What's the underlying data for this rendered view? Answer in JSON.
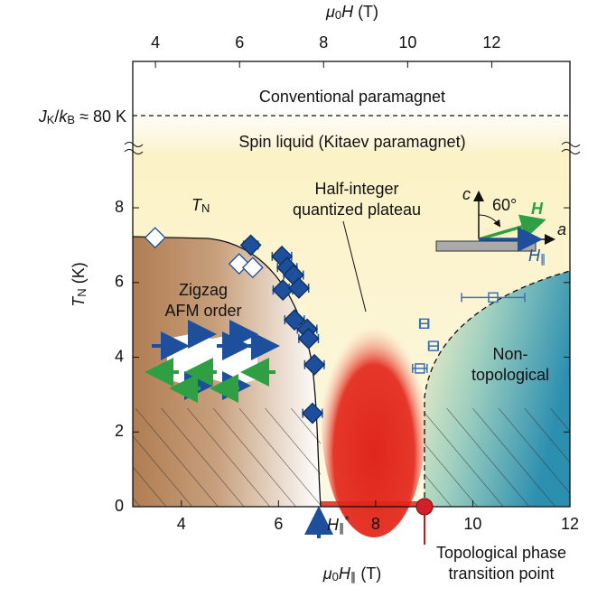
{
  "chart_data": {
    "type": "scatter",
    "x_label": [
      {
        "text": "μ",
        "italic": true
      },
      {
        "text": "0",
        "sub": true
      },
      {
        "text": "H",
        "italic": true
      },
      {
        "text": "∥",
        "sub": true
      },
      {
        "text": " (T)"
      }
    ],
    "x2_label": [
      {
        "text": "μ",
        "italic": true
      },
      {
        "text": "0",
        "sub": true
      },
      {
        "text": "H",
        "italic": true
      },
      {
        "text": " (T)"
      }
    ],
    "y_label": [
      {
        "text": "T",
        "italic": true
      },
      {
        "text": "N",
        "sub": true
      },
      {
        "text": " (K)"
      }
    ],
    "xlim": [
      3,
      12
    ],
    "xticks": [
      4,
      6,
      8,
      10,
      12
    ],
    "x2lim": [
      3.46,
      13.86
    ],
    "x2ticks": [
      4,
      6,
      8,
      10,
      12
    ],
    "ylim": [
      0,
      9.5
    ],
    "yticks": [
      0,
      2,
      4,
      6,
      8
    ],
    "series": [
      {
        "marker": "diamond",
        "color": "#1d4f9c",
        "filled": true,
        "x": [
          5.43,
          6.07,
          6.18,
          6.31,
          6.09,
          6.42,
          6.33,
          6.59,
          6.62,
          6.74,
          6.7
        ],
        "values": [
          7.0,
          6.7,
          6.4,
          6.2,
          5.8,
          5.85,
          5.0,
          4.75,
          4.5,
          3.8,
          2.5
        ],
        "xerr": [
          0.15,
          0.2,
          0.2,
          0.2,
          0.2,
          0.2,
          0.2,
          0.2,
          0.2,
          0.2,
          0.2
        ]
      },
      {
        "marker": "diamond",
        "color": "#1d4f9c",
        "filled": false,
        "x": [
          3.46,
          5.19,
          5.47
        ],
        "values": [
          7.2,
          6.5,
          6.4
        ]
      },
      {
        "marker": "square",
        "color": "#3a6fb8",
        "filled": false,
        "x": [
          9.0,
          9.19,
          8.91,
          10.42
        ],
        "values": [
          4.9,
          4.3,
          3.7,
          5.6
        ],
        "xerr": [
          0.08,
          0.1,
          0.15,
          0.65
        ]
      }
    ],
    "annotations": {
      "conventional": "Conventional paramagnet",
      "spin_liquid": "Spin liquid (Kitaev paramagnet)",
      "jk": [
        {
          "text": "J",
          "italic": true
        },
        {
          "text": "K",
          "sub": true
        },
        {
          "text": "/"
        },
        {
          "text": "k",
          "italic": true
        },
        {
          "text": "B",
          "sub": true
        },
        {
          "text": " ≈ 80 K"
        }
      ],
      "tn": [
        {
          "text": "T",
          "italic": true
        },
        {
          "text": "N",
          "sub": true
        }
      ],
      "plateau": [
        "Half-integer",
        "quantized plateau"
      ],
      "zigzag": [
        "Zigzag",
        "AFM order"
      ],
      "nontopo": [
        "Non-",
        "topological"
      ],
      "transition": [
        "Topological phase",
        "transition point"
      ],
      "angle": "60°",
      "c_axis": "c",
      "a_axis": "a",
      "h_vec": "H",
      "h_par": [
        {
          "text": "H",
          "italic": true
        },
        {
          "text": "∥",
          "sub": true
        }
      ],
      "h_star": [
        {
          "text": "H",
          "italic": true
        },
        {
          "text": "∥",
          "sub": true
        },
        {
          "text": "*",
          "sup": true
        }
      ]
    }
  }
}
